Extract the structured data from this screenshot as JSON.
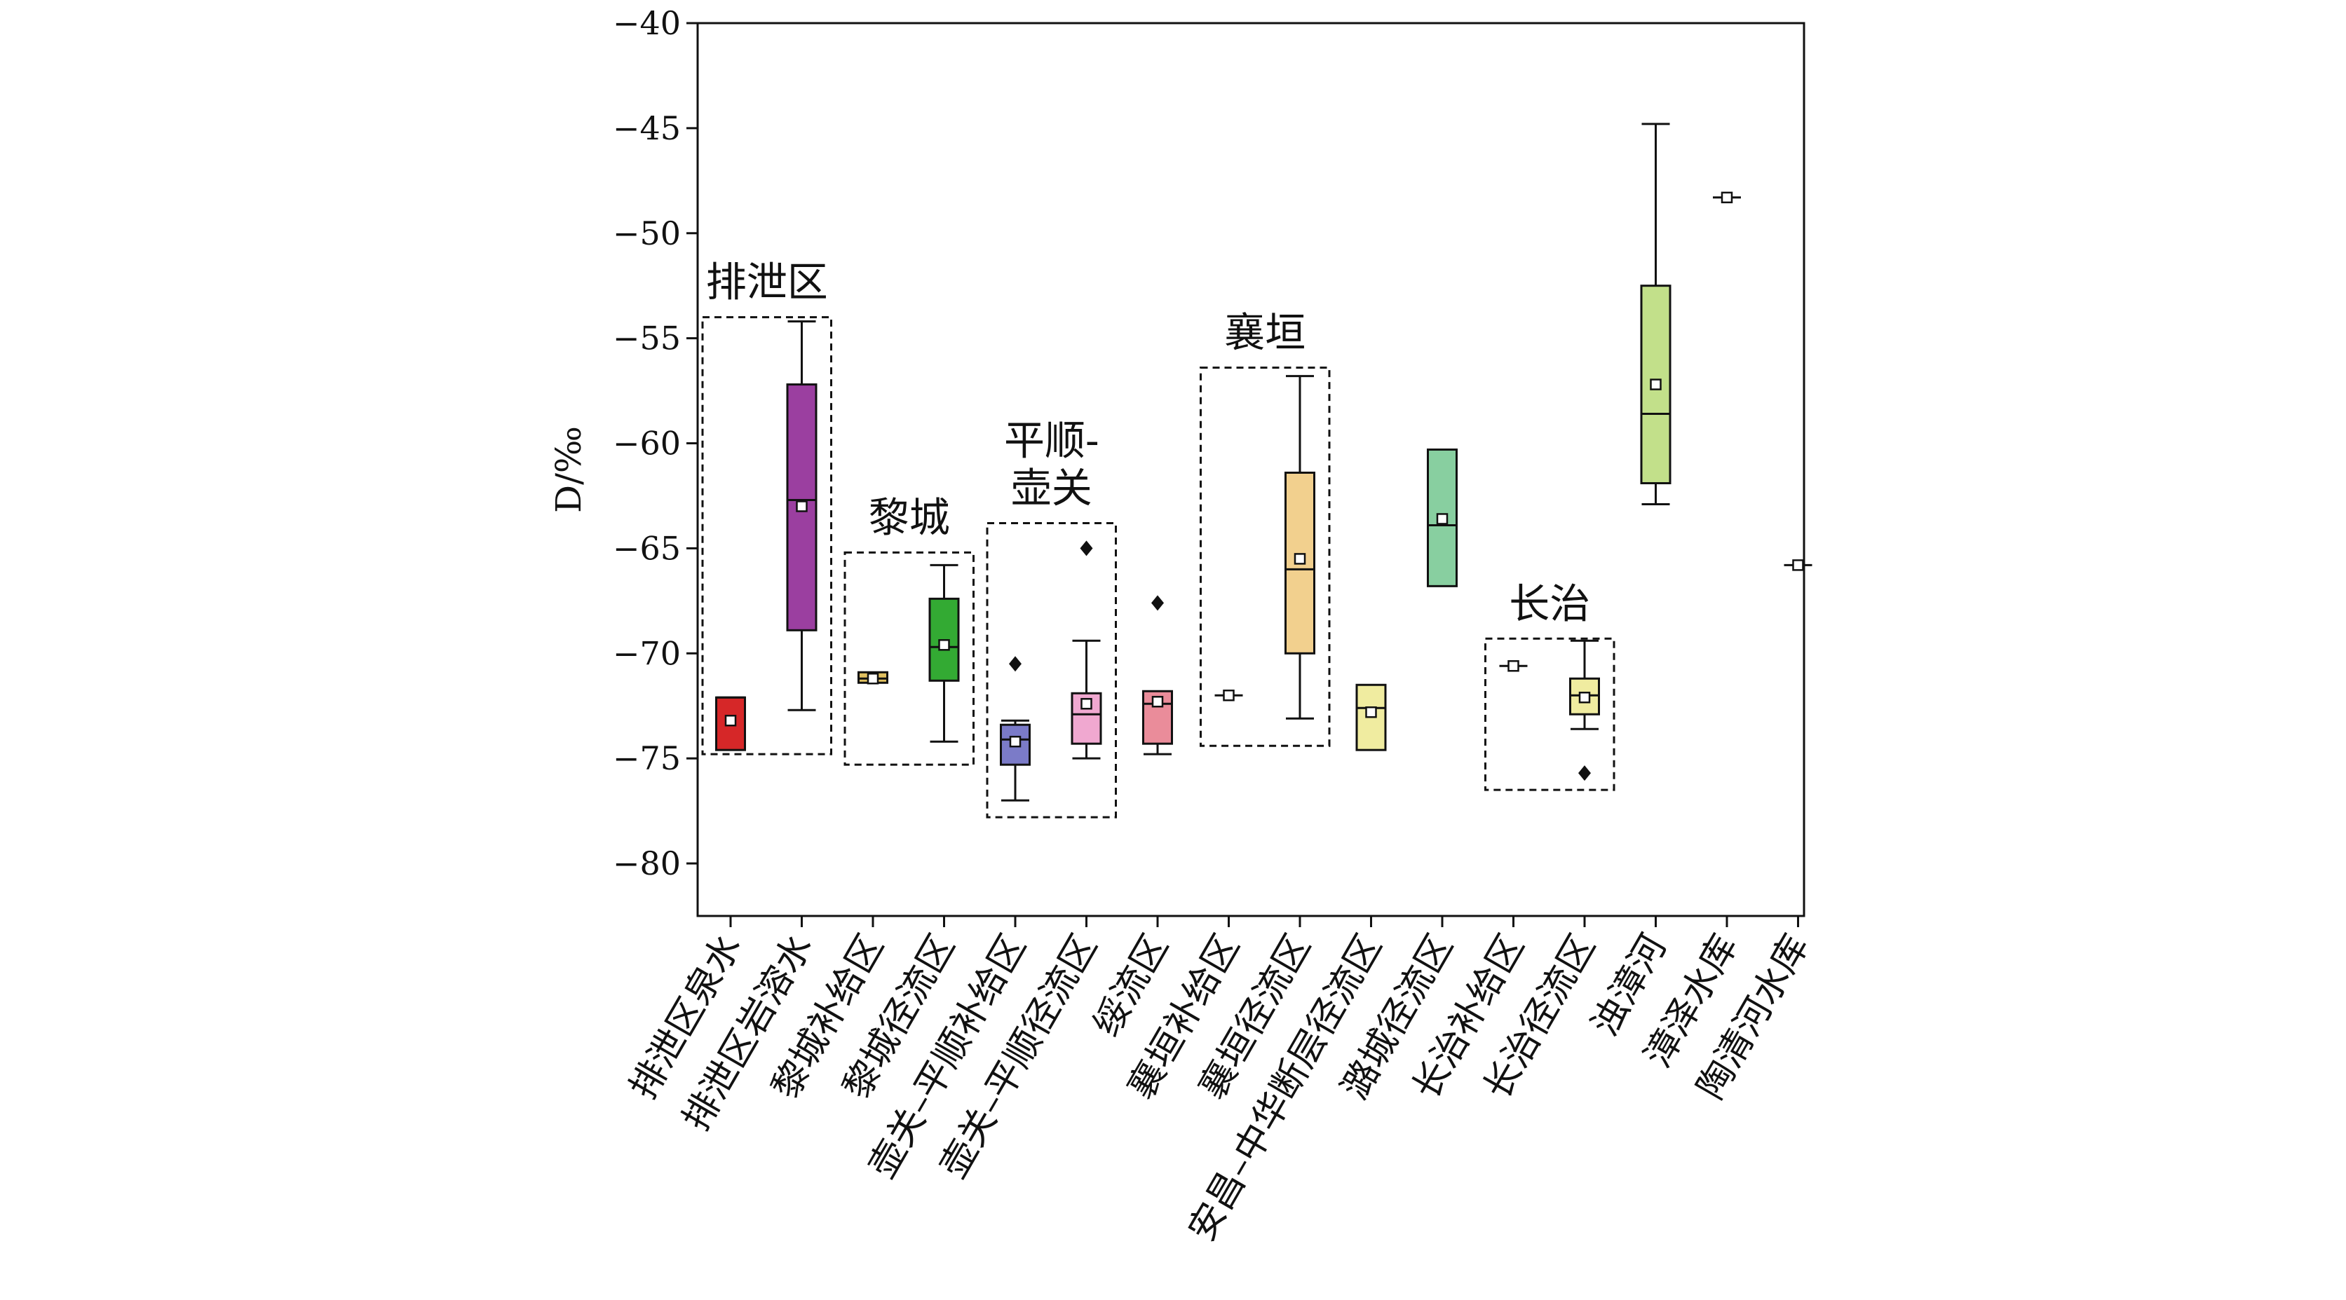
{
  "chart_data": {
    "type": "box",
    "title": "",
    "xlabel": "",
    "ylabel": "D/‰",
    "ylim": [
      -82.5,
      -40
    ],
    "yticks": [
      -40,
      -45,
      -50,
      -55,
      -60,
      -65,
      -70,
      -75,
      -80
    ],
    "ytick_labels": [
      "−40",
      "−45",
      "−50",
      "−55",
      "−60",
      "−65",
      "−70",
      "−75",
      "−80"
    ],
    "categories": [
      "排泄区泉水",
      "排泄区岩溶水",
      "黎城补给区",
      "黎城径流区",
      "壶关–平顺补给区",
      "壶关–平顺径流区",
      "绥流区",
      "襄垣补给区",
      "襄垣径流区",
      "安昌–中华断层径流区",
      "潞城径流区",
      "长治补给区",
      "长治径流区",
      "浊漳河",
      "漳泽水库",
      "陶清河水库"
    ],
    "boxes": [
      {
        "q1": -74.6,
        "median": -72.1,
        "q3": -72.1,
        "mean": -73.2,
        "color": "#d62728"
      },
      {
        "whisker_low": -72.7,
        "q1": -68.9,
        "median": -62.7,
        "q3": -57.2,
        "whisker_high": -54.2,
        "mean": -63.0,
        "color": "#9b3fa0"
      },
      {
        "q1": -71.4,
        "median": -71.2,
        "q3": -70.9,
        "mean": -71.2,
        "color": "#e0c060"
      },
      {
        "whisker_low": -74.2,
        "q1": -71.3,
        "median": -69.7,
        "q3": -67.4,
        "whisker_high": -65.8,
        "mean": -69.6,
        "color": "#33aa33"
      },
      {
        "whisker_low": -77.0,
        "q1": -75.3,
        "median": -74.1,
        "q3": -73.4,
        "whisker_high": -73.2,
        "mean": -74.2,
        "outliers": [
          -70.5
        ],
        "color": "#7b7bc8"
      },
      {
        "whisker_low": -75.0,
        "q1": -74.3,
        "median": -72.9,
        "q3": -71.9,
        "whisker_high": -69.4,
        "mean": -72.4,
        "outliers": [
          -65.0
        ],
        "color": "#f0a8d0"
      },
      {
        "whisker_low": -74.8,
        "q1": -74.3,
        "median": -72.4,
        "q3": -71.8,
        "whisker_high": -71.8,
        "mean": -72.3,
        "outliers": [
          -67.6
        ],
        "color": "#ea8c9a"
      },
      {
        "q1": -72.0,
        "median": -72.0,
        "q3": -72.0,
        "mean": -72.0,
        "color": "#bbbbbb"
      },
      {
        "whisker_low": -73.1,
        "q1": -70.0,
        "median": -66.0,
        "q3": -61.4,
        "whisker_high": -56.8,
        "mean": -65.5,
        "color": "#f2d08e"
      },
      {
        "q1": -74.6,
        "median": -72.6,
        "q3": -71.5,
        "mean": -72.8,
        "color": "#f0eca0"
      },
      {
        "q1": -66.8,
        "median": -63.9,
        "q3": -60.3,
        "mean": -63.6,
        "color": "#88cfa0"
      },
      {
        "q1": -70.6,
        "median": -70.6,
        "q3": -70.6,
        "mean": -70.6,
        "color": "#bbbbbb"
      },
      {
        "whisker_low": -73.6,
        "q1": -72.9,
        "median": -72.0,
        "q3": -71.2,
        "whisker_high": -69.4,
        "mean": -72.1,
        "outliers": [
          -75.7
        ],
        "color": "#f0eca0"
      },
      {
        "whisker_low": -62.9,
        "q1": -61.9,
        "median": -58.6,
        "q3": -52.5,
        "whisker_high": -44.8,
        "mean": -57.2,
        "color": "#c2e08a"
      },
      {
        "q1": -48.3,
        "median": -48.3,
        "q3": -48.3,
        "mean": -48.3,
        "color": "#bbbbbb"
      },
      {
        "q1": -65.8,
        "median": -65.8,
        "q3": -65.8,
        "mean": -65.8,
        "color": "#bbbbbb"
      }
    ],
    "groups": [
      {
        "label": "排泄区",
        "from": 0,
        "to": 1,
        "ymin": -74.8,
        "ymax": -54.0
      },
      {
        "label": "黎城",
        "from": 2,
        "to": 3,
        "ymin": -75.3,
        "ymax": -65.2
      },
      {
        "label": "平顺-\n壶关",
        "from": 4,
        "to": 5,
        "ymin": -77.8,
        "ymax": -63.8
      },
      {
        "label": "襄垣",
        "from": 7,
        "to": 8,
        "ymin": -74.4,
        "ymax": -56.4
      },
      {
        "label": "长治",
        "from": 11,
        "to": 12,
        "ymin": -76.5,
        "ymax": -69.3
      }
    ]
  }
}
